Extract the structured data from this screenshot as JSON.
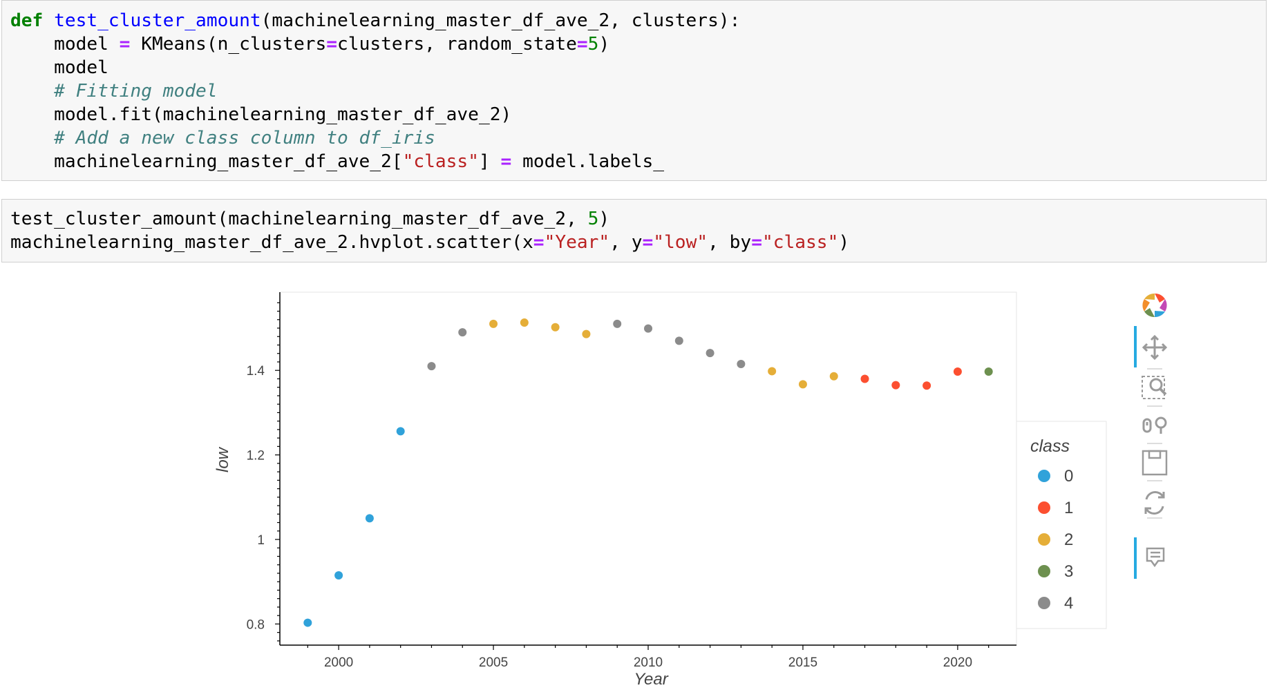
{
  "cells": {
    "cell1": {
      "lines": [
        [
          {
            "t": "def",
            "c": "kw"
          },
          {
            "t": " "
          },
          {
            "t": "test_cluster_amount",
            "c": "fn"
          },
          {
            "t": "(machinelearning_master_df_ave_2, clusters):"
          }
        ],
        [
          {
            "t": "    model "
          },
          {
            "t": "=",
            "c": "op"
          },
          {
            "t": " KMeans(n_clusters"
          },
          {
            "t": "=",
            "c": "op"
          },
          {
            "t": "clusters, random_state"
          },
          {
            "t": "=",
            "c": "op"
          },
          {
            "t": "5",
            "c": "num"
          },
          {
            "t": ")"
          }
        ],
        [
          {
            "t": "    model"
          }
        ],
        [
          {
            "t": "    "
          },
          {
            "t": "# Fitting model",
            "c": "cm"
          }
        ],
        [
          {
            "t": "    model.fit(machinelearning_master_df_ave_2)"
          }
        ],
        [
          {
            "t": "    "
          },
          {
            "t": "# Add a new class column to df_iris",
            "c": "cm"
          }
        ],
        [
          {
            "t": "    machinelearning_master_df_ave_2["
          },
          {
            "t": "\"class\"",
            "c": "str"
          },
          {
            "t": "] "
          },
          {
            "t": "=",
            "c": "op"
          },
          {
            "t": " model.labels_"
          }
        ]
      ]
    },
    "cell2": {
      "lines": [
        [
          {
            "t": "test_cluster_amount(machinelearning_master_df_ave_2, "
          },
          {
            "t": "5",
            "c": "num"
          },
          {
            "t": ")"
          }
        ],
        [
          {
            "t": "machinelearning_master_df_ave_2.hvplot.scatter(x"
          },
          {
            "t": "=",
            "c": "op"
          },
          {
            "t": "\"Year\"",
            "c": "str"
          },
          {
            "t": ", y"
          },
          {
            "t": "=",
            "c": "op"
          },
          {
            "t": "\"low\"",
            "c": "str"
          },
          {
            "t": ", by"
          },
          {
            "t": "=",
            "c": "op"
          },
          {
            "t": "\"class\"",
            "c": "str"
          },
          {
            "t": ")"
          }
        ]
      ]
    }
  },
  "chart_data": {
    "type": "scatter",
    "xlabel": "Year",
    "ylabel": "low",
    "xlim": [
      1998.1,
      2021.9
    ],
    "ylim": [
      0.75,
      1.585
    ],
    "xticks": [
      2000,
      2005,
      2010,
      2015,
      2020
    ],
    "yticks": [
      0.8,
      1,
      1.2,
      1.4
    ],
    "ytick_labels": [
      "0.8",
      "1",
      "1.2",
      "1.4"
    ],
    "grid": false,
    "legend_title": "class",
    "legend_position": "right",
    "series": [
      {
        "name": "0",
        "color": "#30a2da",
        "points": [
          [
            1999,
            0.803
          ],
          [
            2000,
            0.915
          ],
          [
            2001,
            1.05
          ],
          [
            2002,
            1.256
          ]
        ]
      },
      {
        "name": "1",
        "color": "#fc4f30",
        "points": [
          [
            2017,
            1.38
          ],
          [
            2018,
            1.365
          ],
          [
            2019,
            1.364
          ],
          [
            2020,
            1.397
          ]
        ]
      },
      {
        "name": "2",
        "color": "#e5ae38",
        "points": [
          [
            2005,
            1.51
          ],
          [
            2006,
            1.513
          ],
          [
            2007,
            1.502
          ],
          [
            2008,
            1.486
          ],
          [
            2014,
            1.398
          ],
          [
            2015,
            1.367
          ],
          [
            2016,
            1.386
          ]
        ]
      },
      {
        "name": "3",
        "color": "#6d904f",
        "points": [
          [
            2021,
            1.397
          ]
        ]
      },
      {
        "name": "4",
        "color": "#8b8b8b",
        "points": [
          [
            2003,
            1.41
          ],
          [
            2004,
            1.49
          ],
          [
            2009,
            1.51
          ],
          [
            2010,
            1.499
          ],
          [
            2011,
            1.47
          ],
          [
            2012,
            1.441
          ],
          [
            2013,
            1.415
          ]
        ]
      }
    ]
  },
  "toolbar": {
    "tools": [
      "bokeh-logo",
      "pan-icon",
      "box-zoom-icon",
      "wheel-zoom-icon",
      "save-icon",
      "reset-icon",
      "hover-icon"
    ]
  }
}
